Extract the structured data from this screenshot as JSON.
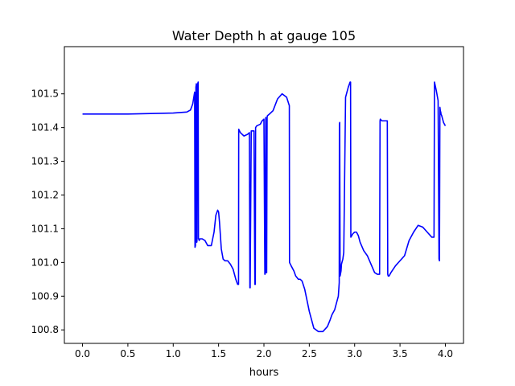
{
  "chart_data": {
    "type": "line",
    "title": "Water Depth h at gauge 105",
    "xlabel": "hours",
    "ylabel": "",
    "xlim": [
      -0.2,
      4.2
    ],
    "ylim": [
      100.76,
      101.64
    ],
    "xticks": [
      0.0,
      0.5,
      1.0,
      1.5,
      2.0,
      2.5,
      3.0,
      3.5,
      4.0
    ],
    "xtick_labels": [
      "0.0",
      "0.5",
      "1.0",
      "1.5",
      "2.0",
      "2.5",
      "3.0",
      "3.5",
      "4.0"
    ],
    "yticks": [
      100.8,
      100.9,
      101.0,
      101.1,
      101.2,
      101.3,
      101.4,
      101.5
    ],
    "ytick_labels": [
      "100.8",
      "100.9",
      "101.0",
      "101.1",
      "101.2",
      "101.3",
      "101.4",
      "101.5"
    ],
    "grid": false,
    "series": [
      {
        "color": "#0000ff",
        "x": [
          0.0,
          0.5,
          1.0,
          1.15,
          1.19,
          1.215,
          1.23,
          1.236,
          1.24,
          1.245,
          1.25,
          1.255,
          1.26,
          1.262,
          1.265,
          1.27,
          1.275,
          1.278,
          1.282,
          1.286,
          1.29,
          1.295,
          1.3,
          1.32,
          1.35,
          1.38,
          1.42,
          1.45,
          1.47,
          1.49,
          1.5,
          1.51,
          1.53,
          1.55,
          1.57,
          1.6,
          1.63,
          1.66,
          1.69,
          1.71,
          1.72,
          1.722,
          1.74,
          1.78,
          1.82,
          1.84,
          1.845,
          1.848,
          1.86,
          1.89,
          1.9,
          1.905,
          1.908,
          1.92,
          1.96,
          1.98,
          2.0,
          2.01,
          2.012,
          2.02,
          2.022,
          2.03,
          2.035,
          2.038,
          2.06,
          2.1,
          2.15,
          2.2,
          2.25,
          2.28,
          2.282,
          2.3,
          2.33,
          2.35,
          2.38,
          2.4,
          2.42,
          2.45,
          2.5,
          2.55,
          2.6,
          2.65,
          2.7,
          2.73,
          2.75,
          2.78,
          2.8,
          2.82,
          2.83,
          2.832,
          2.835,
          2.84,
          2.85,
          2.855,
          2.87,
          2.875,
          2.88,
          2.9,
          2.93,
          2.95,
          2.955,
          2.958,
          2.98,
          3.0,
          3.02,
          3.04,
          3.06,
          3.1,
          3.14,
          3.18,
          3.22,
          3.25,
          3.275,
          3.28,
          3.283,
          3.3,
          3.33,
          3.36,
          3.365,
          3.37,
          3.38,
          3.4,
          3.45,
          3.5,
          3.55,
          3.6,
          3.65,
          3.7,
          3.75,
          3.8,
          3.85,
          3.875,
          3.88,
          3.9,
          3.92,
          3.93,
          3.935,
          3.94,
          3.945,
          3.95,
          3.952,
          3.96,
          3.97,
          3.98,
          4.0
        ],
        "y": [
          101.44,
          101.44,
          101.443,
          101.446,
          101.452,
          101.47,
          101.495,
          101.505,
          101.045,
          101.05,
          101.52,
          101.53,
          101.06,
          101.065,
          101.45,
          101.53,
          101.535,
          101.07,
          101.07,
          101.065,
          101.068,
          101.07,
          101.07,
          101.07,
          101.065,
          101.05,
          101.05,
          101.09,
          101.14,
          101.155,
          101.15,
          101.12,
          101.04,
          101.01,
          101.005,
          101.005,
          100.995,
          100.98,
          100.95,
          100.935,
          100.935,
          101.395,
          101.385,
          101.375,
          101.38,
          101.385,
          100.925,
          100.925,
          101.39,
          101.39,
          100.935,
          100.935,
          101.4,
          101.405,
          101.41,
          101.42,
          101.425,
          100.965,
          100.965,
          101.43,
          100.97,
          100.97,
          101.43,
          101.435,
          101.44,
          101.45,
          101.485,
          101.5,
          101.49,
          101.465,
          101.0,
          100.99,
          100.975,
          100.96,
          100.95,
          100.95,
          100.945,
          100.92,
          100.855,
          100.805,
          100.795,
          100.795,
          100.81,
          100.83,
          100.845,
          100.86,
          100.88,
          100.9,
          100.94,
          101.41,
          101.415,
          100.96,
          100.975,
          100.995,
          101.01,
          101.02,
          101.03,
          101.49,
          101.52,
          101.535,
          101.535,
          101.075,
          101.085,
          101.09,
          101.09,
          101.08,
          101.06,
          101.035,
          101.02,
          100.995,
          100.97,
          100.965,
          100.965,
          101.42,
          101.425,
          101.42,
          101.42,
          101.42,
          100.965,
          100.96,
          100.96,
          100.97,
          100.99,
          101.005,
          101.02,
          101.065,
          101.09,
          101.11,
          101.105,
          101.09,
          101.075,
          101.075,
          101.535,
          101.51,
          101.48,
          101.01,
          101.005,
          101.46,
          101.45,
          101.445,
          101.44,
          101.435,
          101.425,
          101.415,
          101.405
        ]
      }
    ]
  }
}
